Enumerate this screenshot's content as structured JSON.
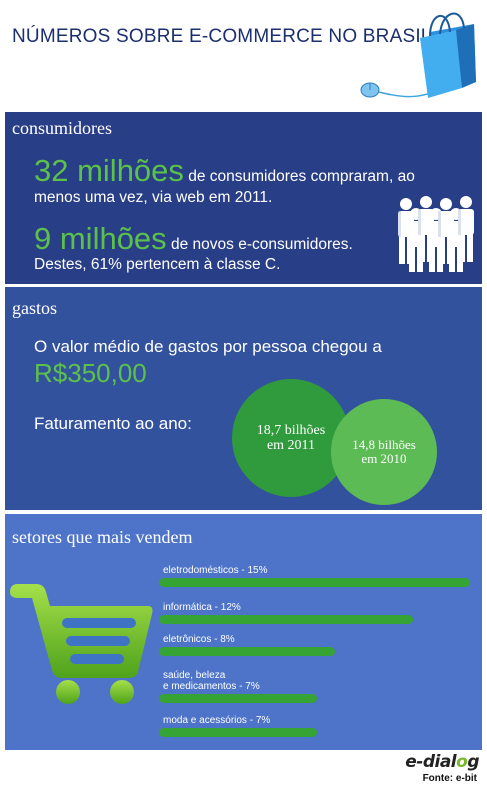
{
  "header": {
    "title": "NÚMEROS SOBRE E-COMMERCE NO BRASIL"
  },
  "consumidores": {
    "section_title": "consumidores",
    "stat1_value": "32 milhões",
    "stat1_text_a": "de consumidores compraram, ao",
    "stat1_text_b": "menos uma vez, via web em 2011.",
    "stat2_value": "9 milhões",
    "stat2_text_a": "de novos e-consumidores.",
    "stat2_text_b": "Destes, 61% pertencem à classe C."
  },
  "gastos": {
    "section_title": "gastos",
    "avg_text": "O valor médio de gastos por pessoa chegou a",
    "avg_value": "R$350,00",
    "revenue_label": "Faturamento ao ano:",
    "circle1_line1": "18,7 bilhões",
    "circle1_line2": "em 2011",
    "circle2_line1": "14,8 bilhões",
    "circle2_line2": "em 2010"
  },
  "setores": {
    "section_title": "setores que mais vendem",
    "items": [
      {
        "label": "eletrodomésticos - 15%",
        "percent": 15
      },
      {
        "label": "informática - 12%",
        "percent": 12
      },
      {
        "label": "eletrônicos - 8%",
        "percent": 8
      },
      {
        "label_line1": "saúde, beleza",
        "label_line2": "e medicamentos - 7%",
        "percent": 7
      },
      {
        "label": "moda e acessórios - 7%",
        "percent": 7
      }
    ]
  },
  "footer": {
    "logo_part1": "e-dial",
    "logo_o": "o",
    "logo_part2": "g",
    "source": "Fonte: e-bit"
  },
  "colors": {
    "title_blue": "#1b2f6e",
    "panel1": "#283e86",
    "panel2": "#33529e",
    "panel3": "#4d74c9",
    "highlight_green": "#5cc14a",
    "bar_green": "#35a434"
  }
}
